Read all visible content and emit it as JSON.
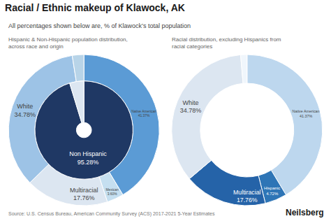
{
  "title": "Racial / Ethnic makeup of Klawock, AK",
  "subtitle": "All percentages shown below are, % of Klawock’s total population",
  "annotations": [
    "Source: U.S. Census Bureau, American Community Survey (ACS) 2017-2021 5-Year Estimates",
    "Neilsberg"
  ],
  "chart_data": [
    {
      "type": "pie",
      "title": "Hispanic & Non-Hispanic population distribution, across race and origin",
      "data_labels": true,
      "series": [
        {
          "categories": [
            "Native American",
            "Mexican",
            "Multiracial",
            "White",
            null
          ],
          "values": [
            41.37,
            3.6,
            17.76,
            34.78,
            2.49
          ],
          "value_labels": [
            "41.37%",
            "3.60%",
            "17.76%",
            "34.78%",
            null
          ],
          "colors": [
            "#5b9bd5",
            "#c5dff0",
            "#dce6f1",
            "#9dc3e6",
            "#b8d4e8"
          ]
        },
        {
          "categories": [
            "Non Hispanic",
            null
          ],
          "values": [
            95.28,
            4.72
          ],
          "value_labels": [
            "95.28%",
            null
          ],
          "colors": [
            "#1f3864",
            "#dce6f1"
          ]
        }
      ]
    },
    {
      "type": "pie",
      "title": "Racial distribution, excluding Hispanics from racial categories",
      "data_labels": true,
      "series": [
        {
          "categories": [
            "Native American",
            "Hispanic",
            "Multiracial",
            "White",
            null
          ],
          "values": [
            41.37,
            4.72,
            17.76,
            34.78,
            1.37
          ],
          "value_labels": [
            "41.37%",
            "4.72%",
            "17.76%",
            "34.78%",
            null
          ],
          "colors": [
            "#bdd7ee",
            "#2e75b6",
            "#2563a8",
            "#dce6f1",
            "#f0f6fc"
          ]
        }
      ]
    }
  ]
}
